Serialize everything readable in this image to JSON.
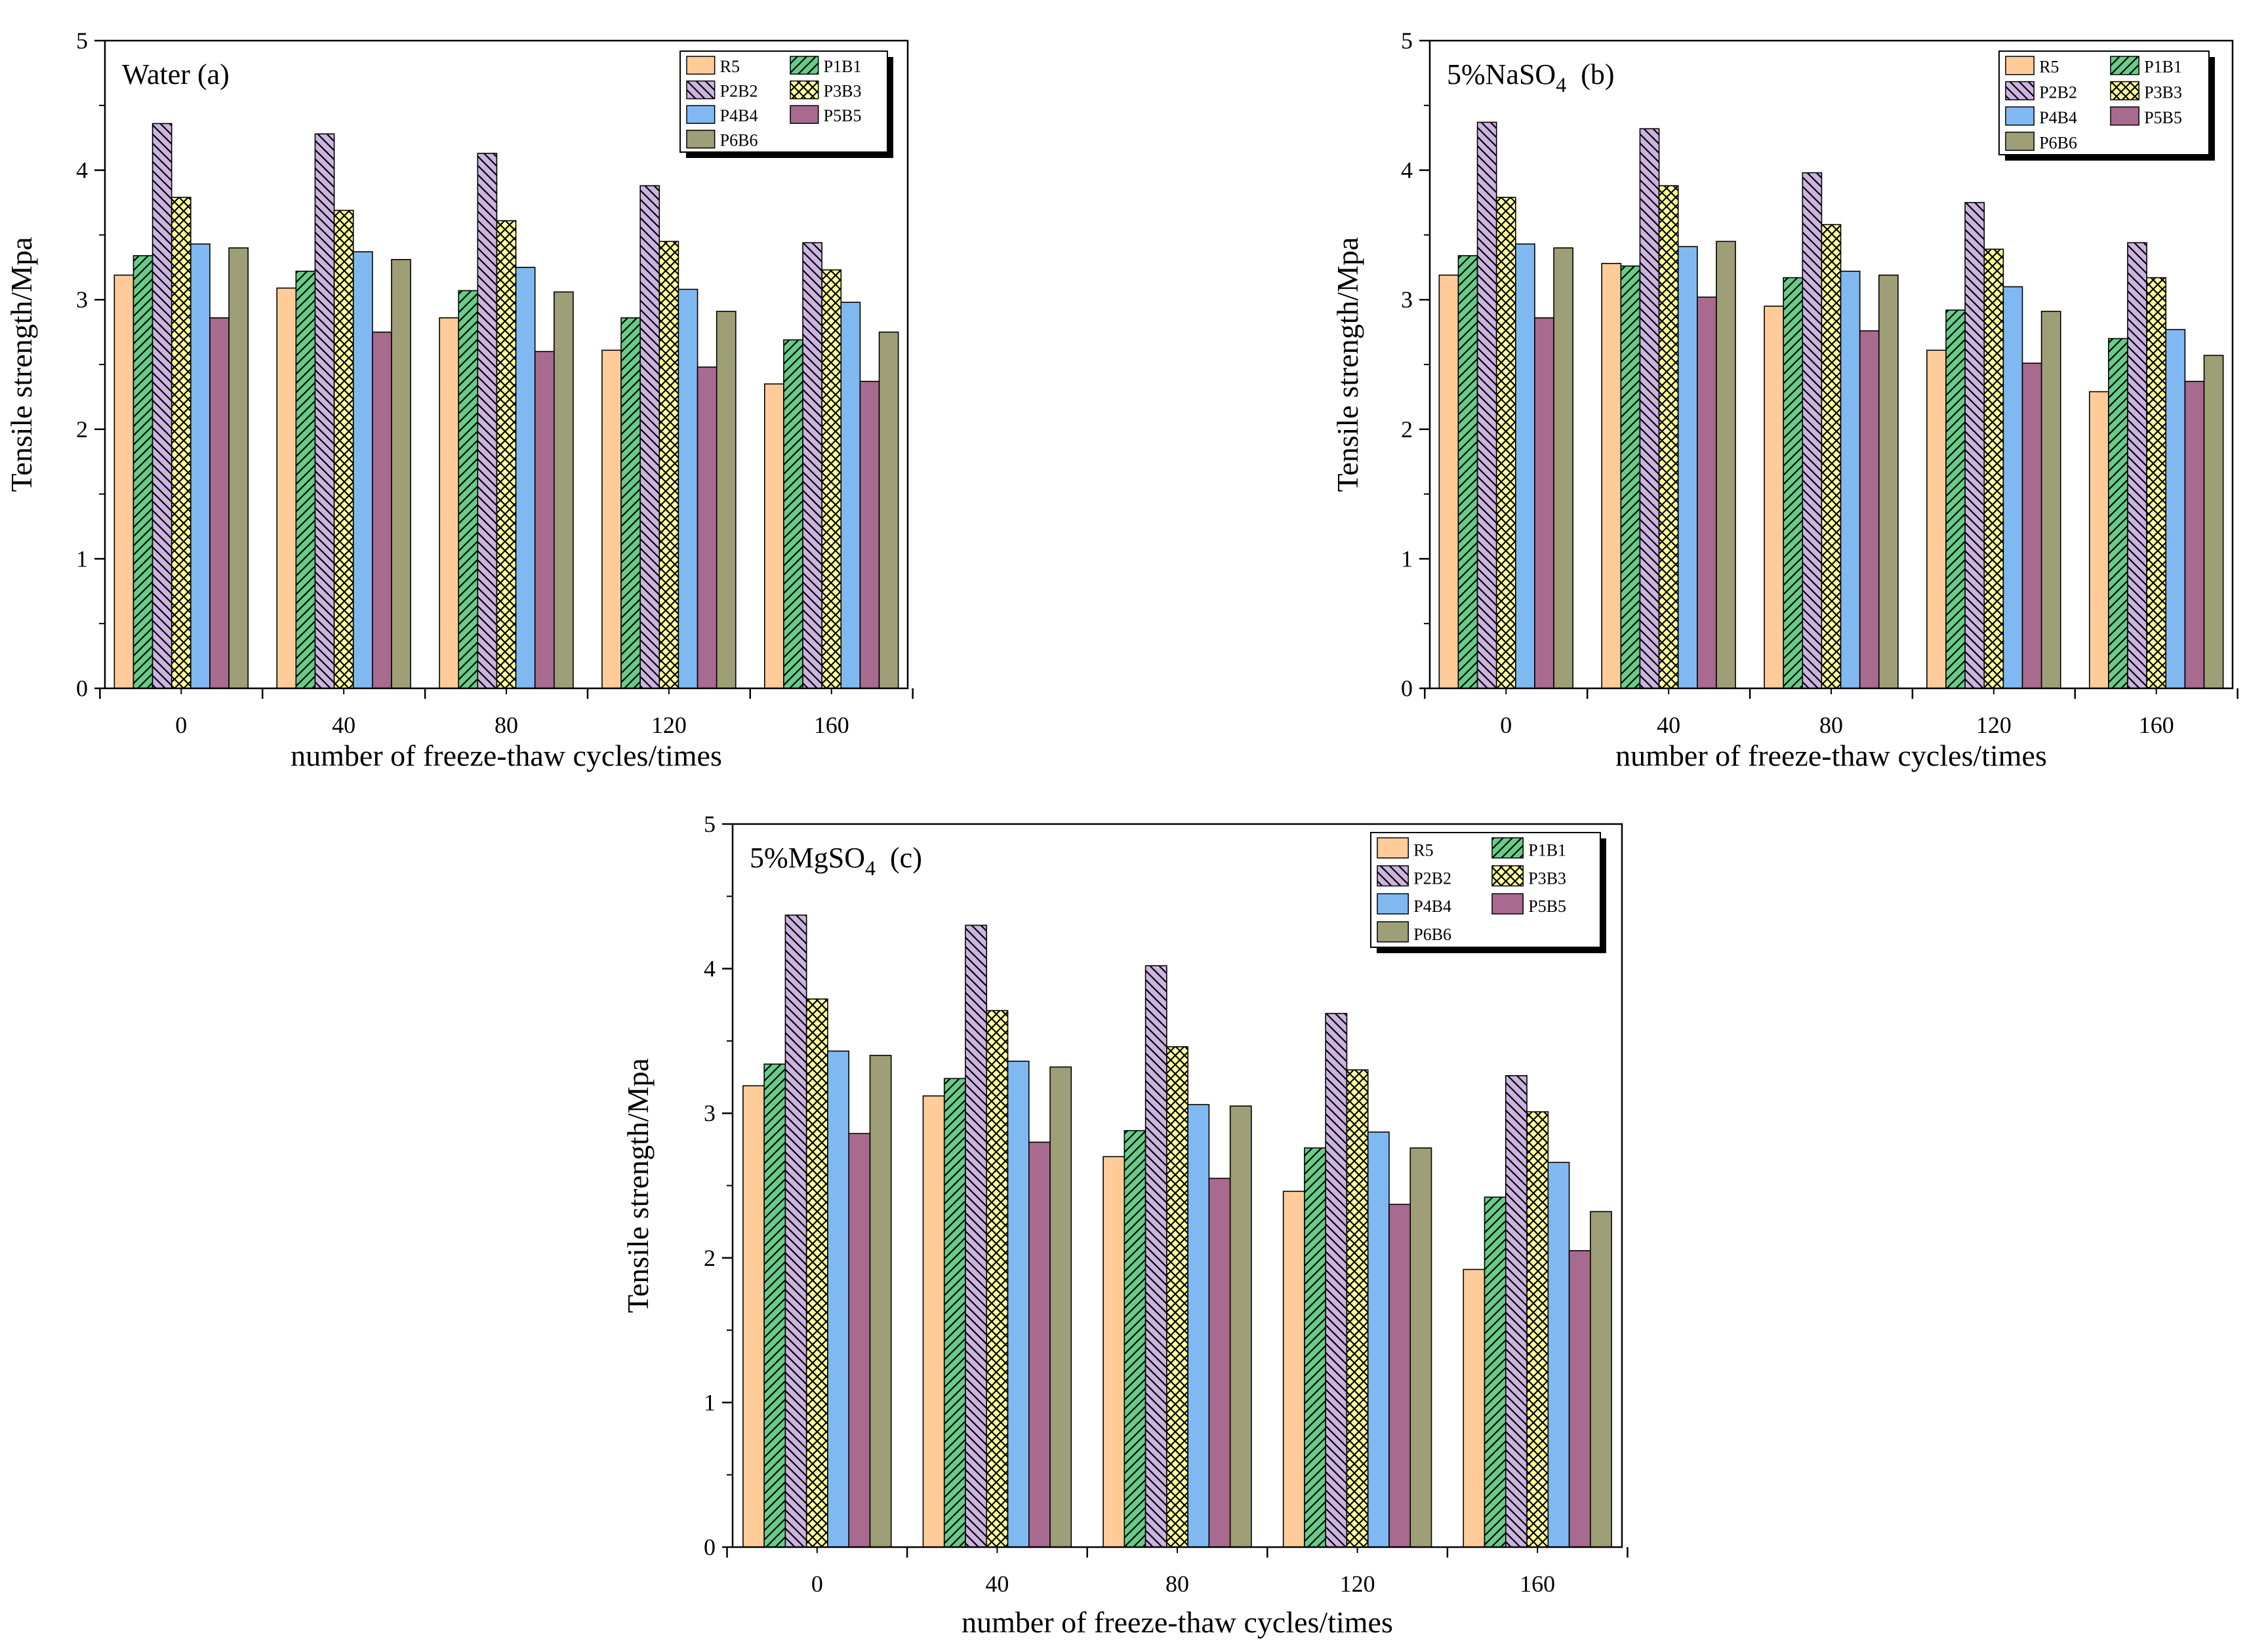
{
  "chart_data": [
    {
      "id": "a",
      "type": "bar",
      "title": "Water",
      "title_sub": "",
      "title_suffix": "",
      "panel_letter": "(a)",
      "xlabel": "number of freeze-thaw cycles/times",
      "ylabel": "Tensile strength/Mpa",
      "categories": [
        "0",
        "40",
        "80",
        "120",
        "160"
      ],
      "ylim": [
        0,
        5
      ],
      "yticks": [
        "0",
        "1",
        "2",
        "3",
        "4",
        "5"
      ],
      "grid": false,
      "legend_position": "top-right",
      "series": [
        {
          "name": "R5",
          "values": [
            3.19,
            3.09,
            2.86,
            2.61,
            2.35
          ]
        },
        {
          "name": "P1B1",
          "values": [
            3.34,
            3.22,
            3.07,
            2.86,
            2.69
          ]
        },
        {
          "name": "P2B2",
          "values": [
            4.36,
            4.28,
            4.13,
            3.88,
            3.44
          ]
        },
        {
          "name": "P3B3",
          "values": [
            3.79,
            3.69,
            3.61,
            3.45,
            3.23
          ]
        },
        {
          "name": "P4B4",
          "values": [
            3.43,
            3.37,
            3.25,
            3.08,
            2.98
          ]
        },
        {
          "name": "P5B5",
          "values": [
            2.86,
            2.75,
            2.6,
            2.48,
            2.37
          ]
        },
        {
          "name": "P6B6",
          "values": [
            3.4,
            3.31,
            3.06,
            2.91,
            2.75
          ]
        }
      ]
    },
    {
      "id": "b",
      "type": "bar",
      "title": "5%NaSO",
      "title_sub": "4",
      "title_suffix": "",
      "panel_letter": "(b)",
      "xlabel": "number of freeze-thaw cycles/times",
      "ylabel": "Tensile strength/Mpa",
      "categories": [
        "0",
        "40",
        "80",
        "120",
        "160"
      ],
      "ylim": [
        0,
        5
      ],
      "yticks": [
        "0",
        "1",
        "2",
        "3",
        "4",
        "5"
      ],
      "grid": false,
      "legend_position": "top-right",
      "series": [
        {
          "name": "R5",
          "values": [
            3.19,
            3.28,
            2.95,
            2.61,
            2.29
          ]
        },
        {
          "name": "P1B1",
          "values": [
            3.34,
            3.26,
            3.17,
            2.92,
            2.7
          ]
        },
        {
          "name": "P2B2",
          "values": [
            4.37,
            4.32,
            3.98,
            3.75,
            3.44
          ]
        },
        {
          "name": "P3B3",
          "values": [
            3.79,
            3.88,
            3.58,
            3.39,
            3.17
          ]
        },
        {
          "name": "P4B4",
          "values": [
            3.43,
            3.41,
            3.22,
            3.1,
            2.77
          ]
        },
        {
          "name": "P5B5",
          "values": [
            2.86,
            3.02,
            2.76,
            2.51,
            2.37
          ]
        },
        {
          "name": "P6B6",
          "values": [
            3.4,
            3.45,
            3.19,
            2.91,
            2.57
          ]
        }
      ]
    },
    {
      "id": "c",
      "type": "bar",
      "title": "5%MgSO",
      "title_sub": "4",
      "title_suffix": "",
      "panel_letter": "(c)",
      "xlabel": "number of freeze-thaw cycles/times",
      "ylabel": "Tensile strength/Mpa",
      "categories": [
        "0",
        "40",
        "80",
        "120",
        "160"
      ],
      "ylim": [
        0,
        5
      ],
      "yticks": [
        "0",
        "1",
        "2",
        "3",
        "4",
        "5"
      ],
      "grid": false,
      "legend_position": "top-right",
      "series": [
        {
          "name": "R5",
          "values": [
            3.19,
            3.12,
            2.7,
            2.46,
            1.92
          ]
        },
        {
          "name": "P1B1",
          "values": [
            3.34,
            3.24,
            2.88,
            2.76,
            2.42
          ]
        },
        {
          "name": "P2B2",
          "values": [
            4.37,
            4.3,
            4.02,
            3.69,
            3.26
          ]
        },
        {
          "name": "P3B3",
          "values": [
            3.79,
            3.71,
            3.46,
            3.3,
            3.01
          ]
        },
        {
          "name": "P4B4",
          "values": [
            3.43,
            3.36,
            3.06,
            2.87,
            2.66
          ]
        },
        {
          "name": "P5B5",
          "values": [
            2.86,
            2.8,
            2.55,
            2.37,
            2.05
          ]
        },
        {
          "name": "P6B6",
          "values": [
            3.4,
            3.32,
            3.05,
            2.76,
            2.32
          ]
        }
      ]
    }
  ],
  "series_style": [
    {
      "name": "R5",
      "color": "#FFCC99",
      "pattern": "none"
    },
    {
      "name": "P1B1",
      "color": "#66CC88",
      "pattern": "hatch-forward"
    },
    {
      "name": "P2B2",
      "color": "#CCB3E0",
      "pattern": "hatch-back"
    },
    {
      "name": "P3B3",
      "color": "#FFFF99",
      "pattern": "crosshatch"
    },
    {
      "name": "P4B4",
      "color": "#80B9F2",
      "pattern": "none"
    },
    {
      "name": "P5B5",
      "color": "#A86A8E",
      "pattern": "none"
    },
    {
      "name": "P6B6",
      "color": "#9E9E77",
      "pattern": "none"
    }
  ]
}
